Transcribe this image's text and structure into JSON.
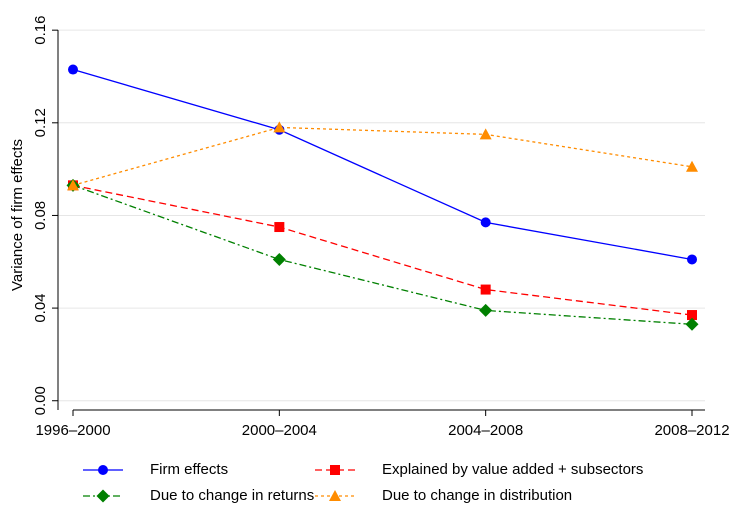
{
  "chart_data": {
    "type": "line",
    "y_label": "Variance of firm effects",
    "categories": [
      "1996–2000",
      "2000–2004",
      "2004–2008",
      "2008–2012"
    ],
    "ylim": [
      -0.004,
      0.17
    ],
    "yticks": [
      {
        "value": 0,
        "label": "0.00"
      },
      0.04,
      0.08,
      0.12,
      0.16
    ],
    "grid": true,
    "series": [
      {
        "name": "Firm effects",
        "color": "#0000ff",
        "marker": "circle",
        "dash": "solid",
        "values": [
          0.143,
          0.117,
          0.077,
          0.061
        ]
      },
      {
        "name": "Explained by value added + subsectors",
        "color": "#ff0000",
        "marker": "square",
        "dash": "dashed",
        "values": [
          0.093,
          0.075,
          0.048,
          0.037
        ]
      },
      {
        "name": "Due to change in returns",
        "color": "#008000",
        "marker": "diamond",
        "dash": "dashdot",
        "values": [
          0.093,
          0.061,
          0.039,
          0.033
        ]
      },
      {
        "name": "Due to change in distribution",
        "color": "#ff8c00",
        "marker": "triangle",
        "dash": "dotted",
        "values": [
          0.093,
          0.118,
          0.115,
          0.101
        ]
      }
    ]
  }
}
